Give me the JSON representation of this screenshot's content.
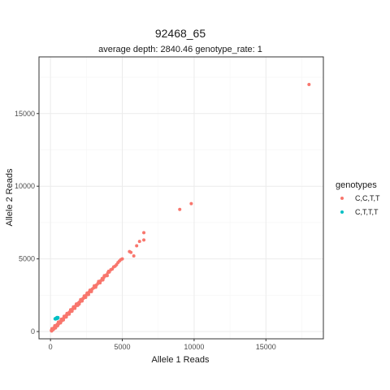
{
  "chart_data": {
    "type": "scatter",
    "title": "92468_65",
    "subtitle": "average depth:  2840.46  genotype_rate:  1",
    "xlabel": "Allele 1 Reads",
    "ylabel": "Allele 2 Reads",
    "xlim": [
      -800,
      19000
    ],
    "ylim": [
      -500,
      18900
    ],
    "x_ticks": [
      0,
      5000,
      10000,
      15000
    ],
    "y_ticks": [
      0,
      5000,
      10000,
      15000
    ],
    "grid": true,
    "legend_title": "genotypes",
    "legend_position": "right",
    "series": [
      {
        "name": "C,C,T,T",
        "color": "#f8766d",
        "points": [
          [
            60,
            70
          ],
          [
            90,
            100
          ],
          [
            120,
            130
          ],
          [
            150,
            150
          ],
          [
            180,
            190
          ],
          [
            210,
            220
          ],
          [
            240,
            250
          ],
          [
            270,
            280
          ],
          [
            300,
            310
          ],
          [
            330,
            340
          ],
          [
            360,
            360
          ],
          [
            390,
            400
          ],
          [
            420,
            430
          ],
          [
            450,
            450
          ],
          [
            480,
            500
          ],
          [
            520,
            530
          ],
          [
            560,
            560
          ],
          [
            600,
            610
          ],
          [
            640,
            650
          ],
          [
            680,
            690
          ],
          [
            720,
            720
          ],
          [
            760,
            770
          ],
          [
            800,
            810
          ],
          [
            840,
            850
          ],
          [
            880,
            880
          ],
          [
            920,
            930
          ],
          [
            960,
            970
          ],
          [
            1000,
            1010
          ],
          [
            1040,
            1040
          ],
          [
            1080,
            1090
          ],
          [
            1120,
            1130
          ],
          [
            1160,
            1160
          ],
          [
            1200,
            1210
          ],
          [
            1250,
            1250
          ],
          [
            1300,
            1310
          ],
          [
            1350,
            1350
          ],
          [
            1400,
            1410
          ],
          [
            1450,
            1450
          ],
          [
            1500,
            1510
          ],
          [
            1550,
            1560
          ],
          [
            1600,
            1610
          ],
          [
            1650,
            1660
          ],
          [
            1700,
            1700
          ],
          [
            1750,
            1760
          ],
          [
            1800,
            1810
          ],
          [
            1850,
            1850
          ],
          [
            1900,
            1910
          ],
          [
            1950,
            1960
          ],
          [
            2000,
            2010
          ],
          [
            2050,
            2050
          ],
          [
            2100,
            2110
          ],
          [
            2150,
            2160
          ],
          [
            2200,
            2210
          ],
          [
            2250,
            2250
          ],
          [
            2300,
            2300
          ],
          [
            2400,
            2400
          ],
          [
            2500,
            2520
          ],
          [
            2600,
            2610
          ],
          [
            2700,
            2720
          ],
          [
            2800,
            2800
          ],
          [
            2900,
            2920
          ],
          [
            3000,
            3000
          ],
          [
            3100,
            3110
          ],
          [
            3200,
            3200
          ],
          [
            3300,
            3310
          ],
          [
            3400,
            3410
          ],
          [
            3500,
            3500
          ],
          [
            3600,
            3650
          ],
          [
            3700,
            3700
          ],
          [
            3800,
            3820
          ],
          [
            3900,
            3900
          ],
          [
            4000,
            4050
          ],
          [
            4100,
            4100
          ],
          [
            4300,
            4300
          ],
          [
            4500,
            4500
          ],
          [
            4700,
            4750
          ],
          [
            4900,
            4950
          ],
          [
            5000,
            5000
          ],
          [
            5500,
            5500
          ],
          [
            5600,
            5450
          ],
          [
            5800,
            5200
          ],
          [
            6000,
            5900
          ],
          [
            6200,
            6200
          ],
          [
            6500,
            6300
          ],
          [
            6500,
            6800
          ],
          [
            9000,
            8400
          ],
          [
            9800,
            8800
          ],
          [
            18000,
            17000
          ],
          [
            100,
            200
          ],
          [
            200,
            150
          ],
          [
            300,
            400
          ],
          [
            350,
            250
          ],
          [
            500,
            400
          ],
          [
            550,
            650
          ],
          [
            700,
            600
          ],
          [
            750,
            850
          ],
          [
            900,
            800
          ],
          [
            950,
            1050
          ],
          [
            1100,
            1000
          ],
          [
            1150,
            1250
          ],
          [
            1300,
            1200
          ],
          [
            1400,
            1500
          ],
          [
            1500,
            1400
          ],
          [
            1600,
            1700
          ],
          [
            1700,
            1600
          ],
          [
            1800,
            1900
          ],
          [
            1900,
            1800
          ],
          [
            2000,
            1900
          ],
          [
            2100,
            2200
          ],
          [
            2200,
            2100
          ],
          [
            2350,
            2450
          ],
          [
            2450,
            2350
          ],
          [
            2550,
            2650
          ],
          [
            2650,
            2550
          ],
          [
            2750,
            2850
          ],
          [
            2850,
            2750
          ],
          [
            3050,
            3150
          ],
          [
            3150,
            3050
          ],
          [
            3350,
            3450
          ],
          [
            3450,
            3350
          ],
          [
            3650,
            3550
          ],
          [
            3750,
            3850
          ],
          [
            3950,
            3850
          ],
          [
            4050,
            4150
          ],
          [
            4200,
            4250
          ],
          [
            4400,
            4450
          ],
          [
            4600,
            4600
          ],
          [
            4800,
            4850
          ],
          [
            80,
            40
          ],
          [
            160,
            120
          ],
          [
            240,
            200
          ],
          [
            320,
            280
          ],
          [
            400,
            360
          ],
          [
            480,
            440
          ],
          [
            560,
            520
          ],
          [
            640,
            600
          ],
          [
            720,
            680
          ],
          [
            800,
            760
          ]
        ]
      },
      {
        "name": "C,T,T,T",
        "color": "#00bfc4",
        "points": [
          [
            320,
            880
          ],
          [
            360,
            900
          ],
          [
            400,
            920
          ],
          [
            440,
            950
          ],
          [
            480,
            930
          ],
          [
            520,
            960
          ],
          [
            350,
            860
          ],
          [
            420,
            890
          ],
          [
            460,
            970
          ],
          [
            500,
            910
          ]
        ]
      }
    ]
  }
}
